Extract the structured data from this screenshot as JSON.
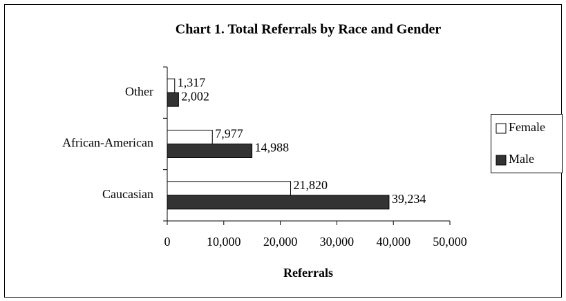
{
  "chart_data": {
    "type": "bar",
    "orientation": "horizontal",
    "title": "Chart 1.  Total Referrals by Race and Gender",
    "x_label": "Referrals",
    "categories": [
      "Caucasian",
      "African-American",
      "Other"
    ],
    "series": [
      {
        "name": "Female",
        "color": "#ffffff",
        "values": [
          21820,
          7977,
          1317
        ],
        "value_labels": [
          "21,820",
          "7,977",
          "1,317"
        ]
      },
      {
        "name": "Male",
        "color": "#333333",
        "values": [
          39234,
          14988,
          2002
        ],
        "value_labels": [
          "39,234",
          "14,988",
          "2,002"
        ]
      }
    ],
    "xlim": [
      0,
      50000
    ],
    "xticks": [
      0,
      {
        "value": 10000,
        "label": "10,000"
      },
      {
        "value": 20000,
        "label": "20,000"
      },
      {
        "value": 30000,
        "label": "30,000"
      },
      {
        "value": 40000,
        "label": "40,000"
      },
      {
        "value": 50000,
        "label": "50,000"
      }
    ],
    "legend": "right"
  }
}
